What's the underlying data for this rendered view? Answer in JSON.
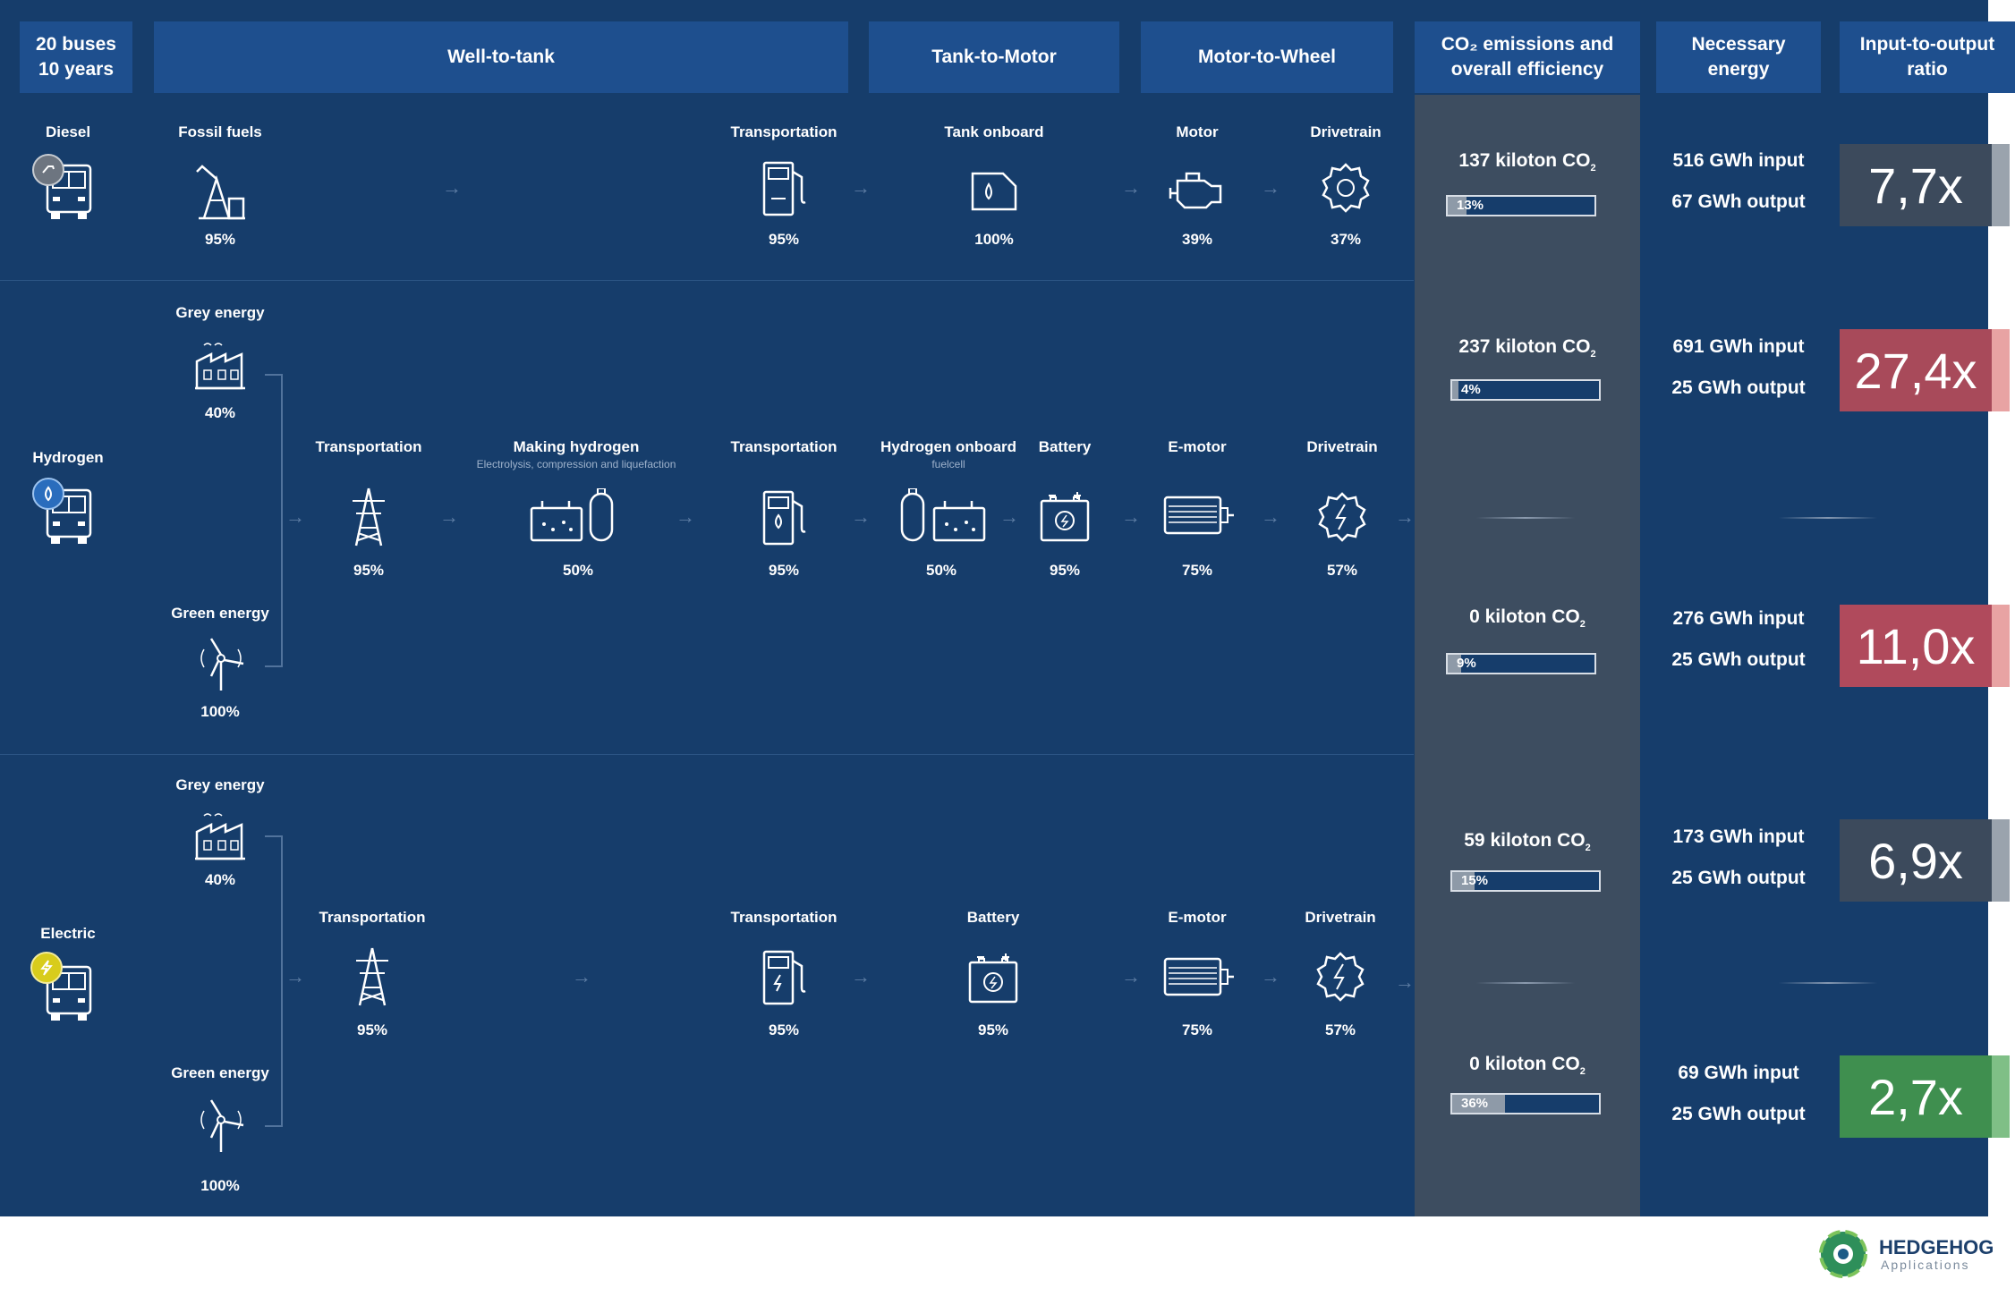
{
  "headers": {
    "top_left": "20 buses\n10 years",
    "well_to_tank": "Well-to-tank",
    "tank_to_motor": "Tank-to-Motor",
    "motor_to_wheel": "Motor-to-Wheel",
    "co2": "CO₂ emissions and\noverall efficiency",
    "energy": "Necessary\nenergy",
    "ratio": "Input-to-output\nratio"
  },
  "rows": {
    "diesel": {
      "label": "Diesel",
      "fossil": {
        "label": "Fossil fuels",
        "pct": "95%"
      },
      "transport": {
        "label": "Transportation",
        "pct": "95%"
      },
      "tank": {
        "label": "Tank onboard",
        "pct": "100%"
      },
      "motor": {
        "label": "Motor",
        "pct": "39%"
      },
      "drivetrain": {
        "label": "Drivetrain",
        "pct": "37%"
      }
    },
    "hydrogen": {
      "label": "Hydrogen",
      "grey": {
        "label": "Grey energy",
        "pct": "40%"
      },
      "green": {
        "label": "Green energy",
        "pct": "100%"
      },
      "transport1": {
        "label": "Transportation",
        "pct": "95%"
      },
      "making": {
        "label": "Making hydrogen",
        "sub": "Electrolysis, compression and liquefaction",
        "pct": "50%"
      },
      "transport2": {
        "label": "Transportation",
        "pct": "95%"
      },
      "onboard": {
        "label": "Hydrogen onboard",
        "sub": "fuelcell",
        "pct": "50%"
      },
      "battery": {
        "label": "Battery",
        "pct": "95%"
      },
      "emotor": {
        "label": "E-motor",
        "pct": "75%"
      },
      "drivetrain": {
        "label": "Drivetrain",
        "pct": "57%"
      }
    },
    "electric": {
      "label": "Electric",
      "grey": {
        "label": "Grey energy",
        "pct": "40%"
      },
      "green": {
        "label": "Green energy",
        "pct": "100%"
      },
      "transport1": {
        "label": "Transportation",
        "pct": "95%"
      },
      "transport2": {
        "label": "Transportation",
        "pct": "95%"
      },
      "battery": {
        "label": "Battery",
        "pct": "95%"
      },
      "emotor": {
        "label": "E-motor",
        "pct": "75%"
      },
      "drivetrain": {
        "label": "Drivetrain",
        "pct": "57%"
      }
    }
  },
  "results": [
    {
      "co2": "137 kiloton CO",
      "eff_label": "13%",
      "eff": 0.13,
      "input": "516 GWh input",
      "output": "67 GWh output",
      "ratio": "7,7x",
      "ratio_color": "#3c4a5c",
      "tab_color": "#9aa3ad"
    },
    {
      "co2": "237 kiloton CO",
      "eff_label": "4%",
      "eff": 0.04,
      "input": "691 GWh input",
      "output": "25 GWh output",
      "ratio": "27,4x",
      "ratio_color": "#a84a5a",
      "tab_color": "#e8a3a3"
    },
    {
      "co2": "0 kiloton CO",
      "eff_label": "9%",
      "eff": 0.09,
      "input": "276 GWh input",
      "output": "25 GWh output",
      "ratio": "11,0x",
      "ratio_color": "#b04a5c",
      "tab_color": "#e8a3a3"
    },
    {
      "co2": "59 kiloton CO",
      "eff_label": "15%",
      "eff": 0.15,
      "input": "173 GWh input",
      "output": "25 GWh output",
      "ratio": "6,9x",
      "ratio_color": "#3c4a5c",
      "tab_color": "#9aa3ad"
    },
    {
      "co2": "0 kiloton CO",
      "eff_label": "36%",
      "eff": 0.36,
      "input": "69 GWh input",
      "output": "25 GWh output",
      "ratio": "2,7x",
      "ratio_color": "#3f8f4f",
      "tab_color": "#7fbf86"
    }
  ],
  "co2_sub": "2",
  "logo": {
    "name": "HEDGEHOG",
    "sub": "Applications"
  }
}
